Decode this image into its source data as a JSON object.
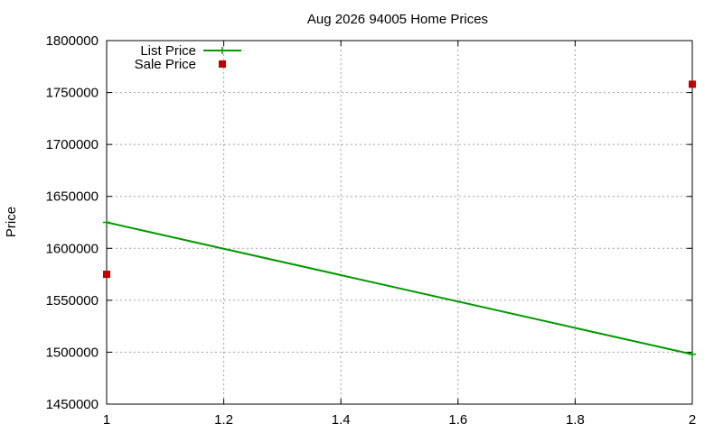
{
  "chart_data": {
    "type": "line",
    "title": "Aug 2026 94005 Home Prices",
    "xlabel": "",
    "ylabel": "Price",
    "xlim": [
      1,
      2
    ],
    "ylim": [
      1450000,
      1800000
    ],
    "x_ticks": [
      "1",
      "1.2",
      "1.4",
      "1.6",
      "1.8",
      "2"
    ],
    "y_ticks": [
      "1450000",
      "1500000",
      "1550000",
      "1600000",
      "1650000",
      "1700000",
      "1750000",
      "1800000"
    ],
    "grid": true,
    "legend_position": "top-left",
    "series": [
      {
        "name": "List Price",
        "style": "line+cross",
        "color": "#009900",
        "points": [
          {
            "x": 1,
            "y": 1625000
          },
          {
            "x": 2,
            "y": 1498000
          }
        ]
      },
      {
        "name": "Sale Price",
        "style": "square",
        "color": "#c00000",
        "points": [
          {
            "x": 1,
            "y": 1575000
          },
          {
            "x": 2,
            "y": 1758000
          }
        ]
      }
    ]
  }
}
